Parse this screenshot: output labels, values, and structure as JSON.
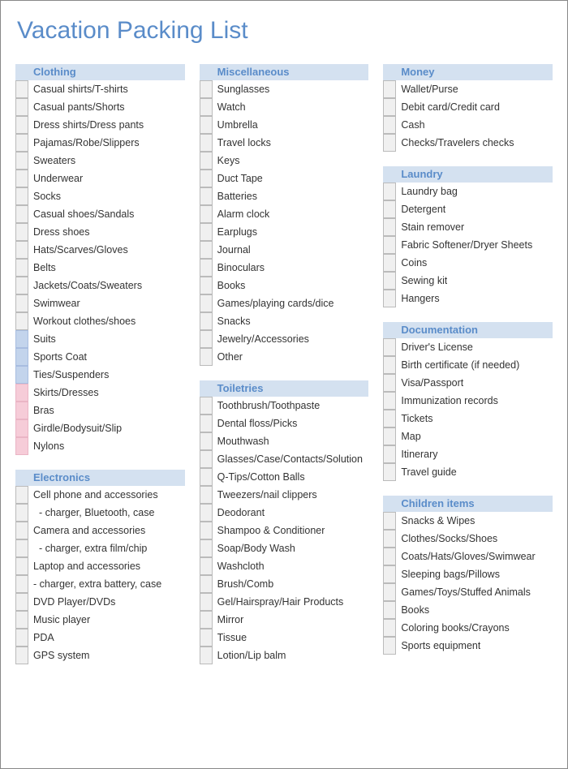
{
  "title": "Vacation Packing List",
  "colors": {
    "title_color": "#5a8cc9",
    "header_bg": "#d4e1f0",
    "header_text": "#5a8cc9",
    "checkbox_default_bg": "#f0f0f0",
    "checkbox_blue_bg": "#c3d4ec",
    "checkbox_pink_bg": "#f6ccd8",
    "item_text": "#333333",
    "page_border": "#888888"
  },
  "columns": [
    [
      {
        "title": "Clothing",
        "items": [
          {
            "label": "Casual shirts/T-shirts",
            "color": "default"
          },
          {
            "label": "Casual pants/Shorts",
            "color": "default"
          },
          {
            "label": "Dress shirts/Dress pants",
            "color": "default"
          },
          {
            "label": "Pajamas/Robe/Slippers",
            "color": "default"
          },
          {
            "label": "Sweaters",
            "color": "default"
          },
          {
            "label": "Underwear",
            "color": "default"
          },
          {
            "label": "Socks",
            "color": "default"
          },
          {
            "label": "Casual shoes/Sandals",
            "color": "default"
          },
          {
            "label": "Dress shoes",
            "color": "default"
          },
          {
            "label": "Hats/Scarves/Gloves",
            "color": "default"
          },
          {
            "label": "Belts",
            "color": "default"
          },
          {
            "label": "Jackets/Coats/Sweaters",
            "color": "default"
          },
          {
            "label": "Swimwear",
            "color": "default"
          },
          {
            "label": "Workout clothes/shoes",
            "color": "default"
          },
          {
            "label": "Suits",
            "color": "blue"
          },
          {
            "label": "Sports Coat",
            "color": "blue"
          },
          {
            "label": "Ties/Suspenders",
            "color": "blue"
          },
          {
            "label": "Skirts/Dresses",
            "color": "pink"
          },
          {
            "label": "Bras",
            "color": "pink"
          },
          {
            "label": "Girdle/Bodysuit/Slip",
            "color": "pink"
          },
          {
            "label": "Nylons",
            "color": "pink"
          }
        ]
      },
      {
        "title": "Electronics",
        "items": [
          {
            "label": "Cell phone and accessories",
            "color": "default"
          },
          {
            "label": "  - charger, Bluetooth, case",
            "color": "default"
          },
          {
            "label": "Camera and accessories",
            "color": "default"
          },
          {
            "label": "  - charger, extra film/chip",
            "color": "default"
          },
          {
            "label": "Laptop and accessories",
            "color": "default"
          },
          {
            "label": "- charger, extra battery, case",
            "color": "default"
          },
          {
            "label": "DVD Player/DVDs",
            "color": "default"
          },
          {
            "label": "Music player",
            "color": "default"
          },
          {
            "label": "PDA",
            "color": "default"
          },
          {
            "label": "GPS system",
            "color": "default"
          }
        ]
      }
    ],
    [
      {
        "title": "Miscellaneous",
        "items": [
          {
            "label": "Sunglasses",
            "color": "default"
          },
          {
            "label": "Watch",
            "color": "default"
          },
          {
            "label": "Umbrella",
            "color": "default"
          },
          {
            "label": "Travel locks",
            "color": "default"
          },
          {
            "label": "Keys",
            "color": "default"
          },
          {
            "label": "Duct Tape",
            "color": "default"
          },
          {
            "label": "Batteries",
            "color": "default"
          },
          {
            "label": "Alarm clock",
            "color": "default"
          },
          {
            "label": "Earplugs",
            "color": "default"
          },
          {
            "label": "Journal",
            "color": "default"
          },
          {
            "label": "Binoculars",
            "color": "default"
          },
          {
            "label": "Books",
            "color": "default"
          },
          {
            "label": "Games/playing cards/dice",
            "color": "default"
          },
          {
            "label": "Snacks",
            "color": "default"
          },
          {
            "label": "Jewelry/Accessories",
            "color": "default"
          },
          {
            "label": "Other",
            "color": "default"
          }
        ]
      },
      {
        "title": "Toiletries",
        "items": [
          {
            "label": "Toothbrush/Toothpaste",
            "color": "default"
          },
          {
            "label": "Dental floss/Picks",
            "color": "default"
          },
          {
            "label": "Mouthwash",
            "color": "default"
          },
          {
            "label": "Glasses/Case/Contacts/Solution",
            "color": "default"
          },
          {
            "label": "Q-Tips/Cotton Balls",
            "color": "default"
          },
          {
            "label": "Tweezers/nail clippers",
            "color": "default"
          },
          {
            "label": "Deodorant",
            "color": "default"
          },
          {
            "label": "Shampoo & Conditioner",
            "color": "default"
          },
          {
            "label": "Soap/Body Wash",
            "color": "default"
          },
          {
            "label": "Washcloth",
            "color": "default"
          },
          {
            "label": "Brush/Comb",
            "color": "default"
          },
          {
            "label": "Gel/Hairspray/Hair Products",
            "color": "default"
          },
          {
            "label": "Mirror",
            "color": "default"
          },
          {
            "label": "Tissue",
            "color": "default"
          },
          {
            "label": "Lotion/Lip balm",
            "color": "default"
          }
        ]
      }
    ],
    [
      {
        "title": "Money",
        "items": [
          {
            "label": "Wallet/Purse",
            "color": "default"
          },
          {
            "label": "Debit card/Credit card",
            "color": "default"
          },
          {
            "label": "Cash",
            "color": "default"
          },
          {
            "label": "Checks/Travelers checks",
            "color": "default"
          }
        ]
      },
      {
        "title": "Laundry",
        "items": [
          {
            "label": "Laundry bag",
            "color": "default"
          },
          {
            "label": "Detergent",
            "color": "default"
          },
          {
            "label": "Stain remover",
            "color": "default"
          },
          {
            "label": "Fabric Softener/Dryer Sheets",
            "color": "default"
          },
          {
            "label": "Coins",
            "color": "default"
          },
          {
            "label": "Sewing kit",
            "color": "default"
          },
          {
            "label": "Hangers",
            "color": "default"
          }
        ]
      },
      {
        "title": "Documentation",
        "items": [
          {
            "label": "Driver's License",
            "color": "default"
          },
          {
            "label": "Birth certificate (if needed)",
            "color": "default"
          },
          {
            "label": "Visa/Passport",
            "color": "default"
          },
          {
            "label": "Immunization records",
            "color": "default"
          },
          {
            "label": "Tickets",
            "color": "default"
          },
          {
            "label": "Map",
            "color": "default"
          },
          {
            "label": "Itinerary",
            "color": "default"
          },
          {
            "label": "Travel guide",
            "color": "default"
          }
        ]
      },
      {
        "title": "Children items",
        "items": [
          {
            "label": "Snacks & Wipes",
            "color": "default"
          },
          {
            "label": "Clothes/Socks/Shoes",
            "color": "default"
          },
          {
            "label": "Coats/Hats/Gloves/Swimwear",
            "color": "default"
          },
          {
            "label": "Sleeping bags/Pillows",
            "color": "default"
          },
          {
            "label": "Games/Toys/Stuffed Animals",
            "color": "default"
          },
          {
            "label": "Books",
            "color": "default"
          },
          {
            "label": "Coloring books/Crayons",
            "color": "default"
          },
          {
            "label": "Sports equipment",
            "color": "default"
          }
        ]
      }
    ]
  ]
}
